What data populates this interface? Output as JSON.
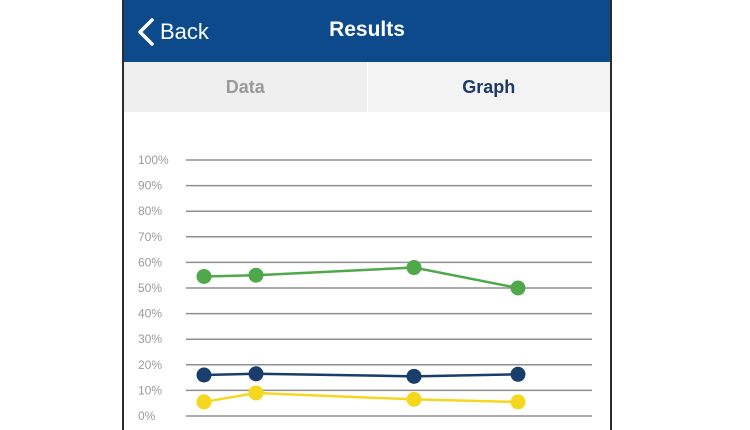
{
  "header": {
    "back_label": "Back",
    "title": "Results",
    "colors": {
      "bar": "#0d4a8c",
      "text": "#ffffff"
    }
  },
  "tabs": [
    {
      "label": "Data",
      "selected": false
    },
    {
      "label": "Graph",
      "selected": true
    }
  ],
  "icons": {
    "back": "chevron-left-icon"
  },
  "chart_data": {
    "type": "line",
    "title": "",
    "xlabel": "",
    "ylabel": "",
    "ylim": [
      0,
      100
    ],
    "ytick_labels": [
      "0%",
      "10%",
      "20%",
      "30%",
      "40%",
      "50%",
      "60%",
      "70%",
      "80%",
      "90%",
      "100%"
    ],
    "x": [
      1,
      2,
      3,
      4
    ],
    "grid": true,
    "series": [
      {
        "color": "#4fa84a",
        "values": [
          54.5,
          55,
          58,
          50
        ]
      },
      {
        "color": "#1a3d6b",
        "values": [
          16,
          16.5,
          15.5,
          16.3
        ]
      },
      {
        "color": "#f5d81e",
        "values": [
          5.5,
          9,
          6.5,
          5.5
        ]
      }
    ]
  }
}
